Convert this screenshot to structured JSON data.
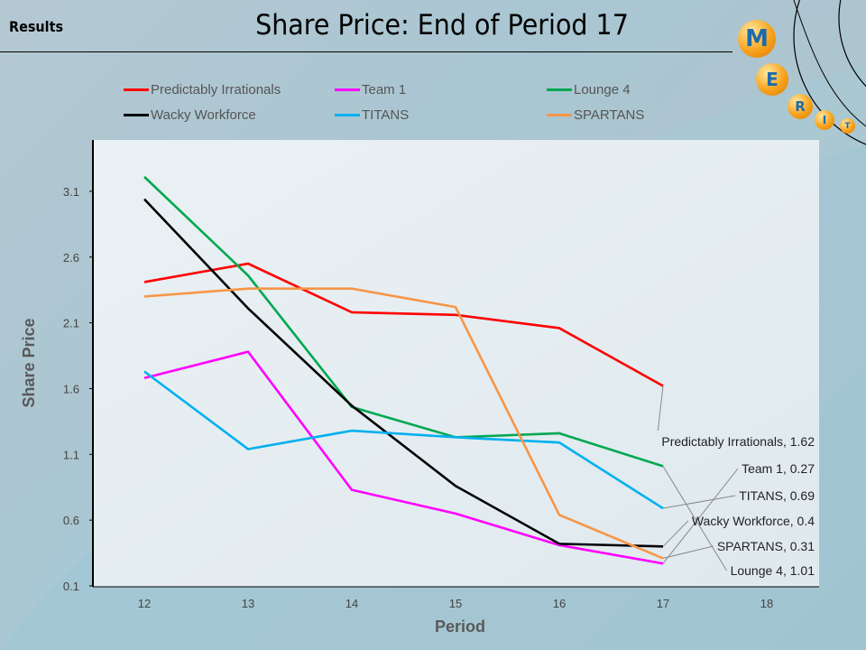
{
  "header": {
    "section_label": "Results",
    "title": "Share Price: End of Period 17"
  },
  "logo": {
    "letters": [
      "M",
      "E",
      "R",
      "I",
      "T"
    ]
  },
  "chart_data": {
    "type": "line",
    "title": "Share Price: End of Period 17",
    "xlabel": "Period",
    "ylabel": "Share Price",
    "x": [
      12,
      13,
      14,
      15,
      16,
      17
    ],
    "x_ticks": [
      "12",
      "13",
      "14",
      "15",
      "16",
      "17",
      "18"
    ],
    "y_ticks": [
      "0.1",
      "0.6",
      "1.1",
      "1.6",
      "2.1",
      "2.6",
      "3.1"
    ],
    "xlim": [
      12,
      18
    ],
    "ylim": [
      0.1,
      3.5
    ],
    "grid": false,
    "legend_position": "top",
    "series": [
      {
        "name": "Predictably Irrationals",
        "color": "#ff0000",
        "values": [
          2.41,
          2.55,
          2.18,
          2.16,
          2.06,
          1.62
        ],
        "end_label": "Predictably Irrationals,  1.62"
      },
      {
        "name": "Team 1",
        "color": "#ff00ff",
        "values": [
          1.68,
          1.88,
          0.83,
          0.65,
          0.41,
          0.27
        ],
        "end_label": "Team 1, 0.27"
      },
      {
        "name": "Lounge 4",
        "color": "#00a84f",
        "values": [
          3.21,
          2.46,
          1.46,
          1.23,
          1.26,
          1.01
        ],
        "end_label": "Lounge 4, 1.01"
      },
      {
        "name": "Wacky Workforce",
        "color": "#000000",
        "values": [
          3.04,
          2.21,
          1.47,
          0.86,
          0.42,
          0.4
        ],
        "end_label": "Wacky Workforce, 0.4"
      },
      {
        "name": "TITANS",
        "color": "#00b0f0",
        "values": [
          1.73,
          1.14,
          1.28,
          1.23,
          1.19,
          0.69
        ],
        "end_label": "TITANS,  0.69"
      },
      {
        "name": "SPARTANS",
        "color": "#f79646",
        "values": [
          2.3,
          2.36,
          2.36,
          2.22,
          0.64,
          0.31
        ],
        "end_label": "SPARTANS, 0.31"
      }
    ]
  }
}
